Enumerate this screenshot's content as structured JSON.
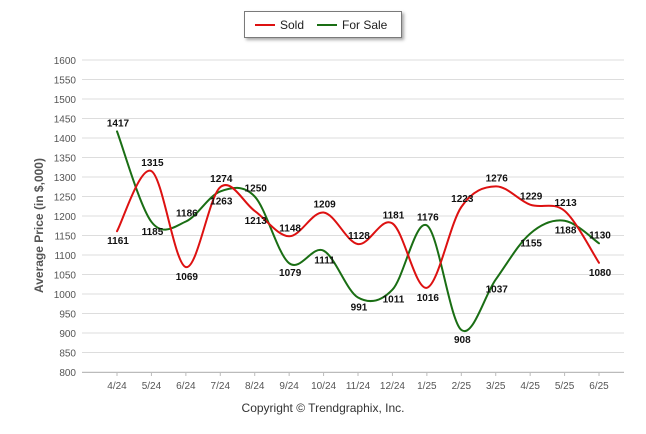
{
  "legend": {
    "sold_label": "Sold",
    "forsale_label": "For Sale"
  },
  "footer": {
    "copyright": "Copyright © Trendgraphix, Inc."
  },
  "colors": {
    "sold": "#dd1111",
    "forsale": "#1a6e14",
    "grid": "#dddddd",
    "axis_text": "#555555"
  },
  "chart_data": {
    "type": "line",
    "ylabel": "Average Price (in $,000)",
    "xlabel": "",
    "ylim": [
      800,
      1600
    ],
    "yticks": [
      800,
      850,
      900,
      950,
      1000,
      1050,
      1100,
      1150,
      1200,
      1250,
      1300,
      1350,
      1400,
      1450,
      1500,
      1550,
      1600
    ],
    "categories": [
      "4/24",
      "5/24",
      "6/24",
      "7/24",
      "8/24",
      "9/24",
      "10/24",
      "11/24",
      "12/24",
      "1/25",
      "2/25",
      "3/25",
      "4/25",
      "5/25",
      "6/25"
    ],
    "grid": true,
    "legend_position": "top-center",
    "series": [
      {
        "name": "Sold",
        "color": "#dd1111",
        "values": [
          1161,
          1315,
          1069,
          1274,
          1213,
          1148,
          1209,
          1128,
          1181,
          1016,
          1223,
          1276,
          1229,
          1213,
          1080
        ]
      },
      {
        "name": "For Sale",
        "color": "#1a6e14",
        "values": [
          1417,
          1185,
          1186,
          1263,
          1250,
          1079,
          1111,
          991,
          1011,
          1176,
          908,
          1037,
          1155,
          1188,
          1130
        ]
      }
    ]
  }
}
